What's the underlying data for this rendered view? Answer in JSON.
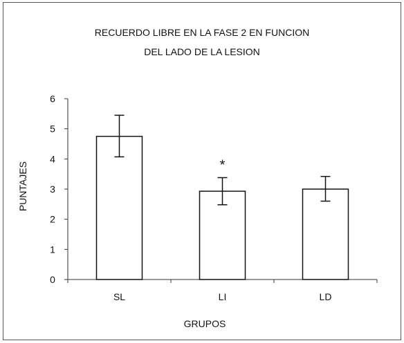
{
  "chart_data": {
    "type": "bar",
    "title": [
      "RECUERDO LIBRE EN LA FASE 2 EN  FUNCION",
      "DEL LADO DE LA LESION"
    ],
    "xlabel": "GRUPOS",
    "ylabel": "PUNTAJES",
    "categories": [
      "SL",
      "LI",
      "LD"
    ],
    "values": [
      4.75,
      2.93,
      3.0
    ],
    "error_low": [
      4.07,
      2.48,
      2.6
    ],
    "error_high": [
      5.45,
      3.38,
      3.42
    ],
    "ylim": [
      0,
      6
    ],
    "yticks": [
      "0",
      "1",
      "2",
      "3",
      "4",
      "5",
      "6"
    ],
    "grid": false,
    "legend": "none",
    "annotations": [
      {
        "category": "LI",
        "text": "*"
      }
    ],
    "colors": {
      "bar_fill": "#ffffff",
      "bar_stroke": "#111111",
      "axis": "#333333"
    }
  }
}
